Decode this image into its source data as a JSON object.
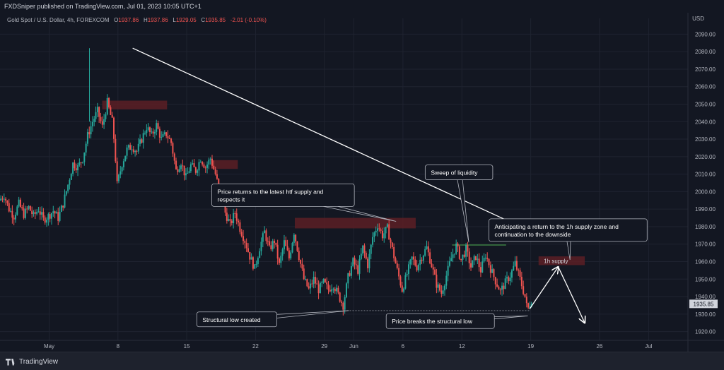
{
  "header": {
    "published": "FXDSniper published on TradingView.com, Jul 01, 2023 10:05 UTC+1"
  },
  "symbol": {
    "name": "Gold Spot / U.S. Dollar, 4h, FOREXCOM",
    "open_label": "O",
    "open": "1937.86",
    "high_label": "H",
    "high": "1937.86",
    "low_label": "L",
    "low": "1929.05",
    "close_label": "C",
    "close": "1935.85",
    "change": "-2.01 (-0.10%)"
  },
  "footer": {
    "brand": "TradingView"
  },
  "colors": {
    "background": "#131722",
    "up": "#26a69a",
    "down": "#ef5350",
    "zone": "#5c1f24",
    "grid": "#1f2330",
    "text": "#d1d4dc",
    "arrow": "#ffffff",
    "callout_bg": "#131722",
    "callout_border": "#b2b5be",
    "price_tag_bg": "#d1d4dc"
  },
  "chart_data": {
    "type": "candlestick",
    "currency": "USD",
    "timeframe": "4h",
    "ylim": [
      1915,
      2095
    ],
    "y_ticks": [
      1920,
      1930,
      1940,
      1950,
      1960,
      1970,
      1980,
      1990,
      2000,
      2010,
      2020,
      2030,
      2040,
      2050,
      2060,
      2070,
      2080,
      2090
    ],
    "x_tick_labels": [
      {
        "label": "May",
        "day": 0
      },
      {
        "label": "8",
        "day": 7
      },
      {
        "label": "15",
        "day": 14
      },
      {
        "label": "22",
        "day": 21
      },
      {
        "label": "29",
        "day": 28
      },
      {
        "label": "Jun",
        "day": 31
      },
      {
        "label": "6",
        "day": 36
      },
      {
        "label": "12",
        "day": 42
      },
      {
        "label": "19",
        "day": 49
      },
      {
        "label": "26",
        "day": 56
      },
      {
        "label": "Jul",
        "day": 61
      }
    ],
    "x_range_days": [
      -5,
      65
    ],
    "last_price": "1935.85",
    "last_price_value": 1935.85,
    "path": [
      [
        -5,
        1995
      ],
      [
        -4.5,
        1998
      ],
      [
        -4,
        1990
      ],
      [
        -3.5,
        1986
      ],
      [
        -3,
        1993
      ],
      [
        -2.5,
        1987
      ],
      [
        -2,
        1991
      ],
      [
        -1.5,
        1986
      ],
      [
        -1,
        1990
      ],
      [
        -0.5,
        1984
      ],
      [
        0,
        1986
      ],
      [
        0.5,
        1989
      ],
      [
        1,
        1985
      ],
      [
        1.5,
        1993
      ],
      [
        2,
        2004
      ],
      [
        2.5,
        2016
      ],
      [
        3,
        2014
      ],
      [
        3.5,
        2019
      ],
      [
        4,
        2032
      ],
      [
        4.5,
        2040
      ],
      [
        5,
        2046
      ],
      [
        5.5,
        2037
      ],
      [
        6,
        2051
      ],
      [
        6.5,
        2040
      ],
      [
        6.75,
        2026
      ],
      [
        7,
        2004
      ],
      [
        7.5,
        2016
      ],
      [
        8,
        2024
      ],
      [
        8.5,
        2026
      ],
      [
        9,
        2023
      ],
      [
        9.5,
        2030
      ],
      [
        10,
        2037
      ],
      [
        10.5,
        2032
      ],
      [
        11,
        2038
      ],
      [
        11.5,
        2030
      ],
      [
        12,
        2033
      ],
      [
        12.5,
        2028
      ],
      [
        13,
        2012
      ],
      [
        13.5,
        2017
      ],
      [
        14,
        2008
      ],
      [
        14.5,
        2015
      ],
      [
        15,
        2012
      ],
      [
        15.5,
        2019
      ],
      [
        16,
        2014
      ],
      [
        16.5,
        2019
      ],
      [
        17,
        2010
      ],
      [
        17.5,
        1998
      ],
      [
        18,
        1988
      ],
      [
        18.5,
        1981
      ],
      [
        19,
        1988
      ],
      [
        19.5,
        1979
      ],
      [
        20,
        1972
      ],
      [
        20.5,
        1963
      ],
      [
        21,
        1956
      ],
      [
        21.5,
        1968
      ],
      [
        22,
        1977
      ],
      [
        22.5,
        1967
      ],
      [
        23,
        1972
      ],
      [
        23.5,
        1958
      ],
      [
        24,
        1971
      ],
      [
        24.5,
        1962
      ],
      [
        25,
        1977
      ],
      [
        25.5,
        1963
      ],
      [
        26,
        1950
      ],
      [
        26.5,
        1944
      ],
      [
        27,
        1950
      ],
      [
        27.5,
        1944
      ],
      [
        28,
        1948
      ],
      [
        28.5,
        1944
      ],
      [
        29,
        1947
      ],
      [
        29.5,
        1941
      ],
      [
        30,
        1935
      ],
      [
        30.5,
        1951
      ],
      [
        31,
        1960
      ],
      [
        31.5,
        1955
      ],
      [
        32,
        1968
      ],
      [
        32.5,
        1958
      ],
      [
        33,
        1974
      ],
      [
        33.5,
        1981
      ],
      [
        34,
        1975
      ],
      [
        34.5,
        1979
      ],
      [
        35,
        1967
      ],
      [
        35.5,
        1955
      ],
      [
        36,
        1944
      ],
      [
        36.5,
        1953
      ],
      [
        37,
        1962
      ],
      [
        37.5,
        1957
      ],
      [
        38,
        1963
      ],
      [
        38.5,
        1968
      ],
      [
        39,
        1958
      ],
      [
        39.5,
        1947
      ],
      [
        40,
        1942
      ],
      [
        40.5,
        1952
      ],
      [
        41,
        1962
      ],
      [
        41.5,
        1969
      ],
      [
        42,
        1961
      ],
      [
        42.5,
        1967
      ],
      [
        43,
        1957
      ],
      [
        43.5,
        1963
      ],
      [
        44,
        1955
      ],
      [
        44.5,
        1964
      ],
      [
        45,
        1956
      ],
      [
        45.5,
        1949
      ],
      [
        46,
        1943
      ],
      [
        46.5,
        1948
      ],
      [
        47,
        1952
      ],
      [
        47.5,
        1959
      ],
      [
        48,
        1950
      ],
      [
        48.5,
        1940
      ],
      [
        48.75,
        1932
      ],
      [
        49,
        1935.85
      ]
    ],
    "zones": [
      {
        "from_day": 5.4,
        "to_day": 12.0,
        "low": 2047,
        "high": 2052
      },
      {
        "from_day": 16.5,
        "to_day": 19.2,
        "low": 2013,
        "high": 2018
      },
      {
        "from_day": 25.0,
        "to_day": 37.3,
        "low": 1979,
        "high": 1985
      },
      {
        "from_day": 49.8,
        "to_day": 54.5,
        "low": 1958,
        "high": 1963,
        "label": "1h supply"
      }
    ],
    "levels": [
      {
        "from_day": 30.0,
        "to_day": 48.9,
        "value": 1932,
        "style": "dotted"
      },
      {
        "from_day": 41.0,
        "to_day": 46.5,
        "value": 1969.5,
        "style": "solid"
      }
    ],
    "trend_arrow": {
      "from": [
        8.5,
        2082
      ],
      "to": [
        49.9,
        1975
      ]
    },
    "projection": {
      "points": [
        [
          48.9,
          1933
        ],
        [
          51.8,
          1957
        ],
        [
          54.5,
          1925
        ]
      ]
    },
    "annotations": [
      {
        "text": "Price returns to the latest htf supply and respects it",
        "box_day": 23.8,
        "box_value": 1998,
        "pointer": [
          35.3,
          1983
        ]
      },
      {
        "text": "Sweep of liquidity",
        "box_day": 41.7,
        "box_value": 2011,
        "pointer": [
          42.7,
          1971
        ]
      },
      {
        "text": "Anticipating a return to the 1h supply zone and continuation to the downside",
        "box_day": 52.8,
        "box_value": 1978,
        "pointer": [
          53.0,
          1961
        ]
      },
      {
        "text": "Structural low created",
        "box_day": 19.1,
        "box_value": 1927,
        "pointer": [
          30.5,
          1932
        ]
      },
      {
        "text": "Price breaks the structural low",
        "box_day": 39.8,
        "box_value": 1926,
        "pointer": [
          48.7,
          1929
        ]
      }
    ]
  }
}
